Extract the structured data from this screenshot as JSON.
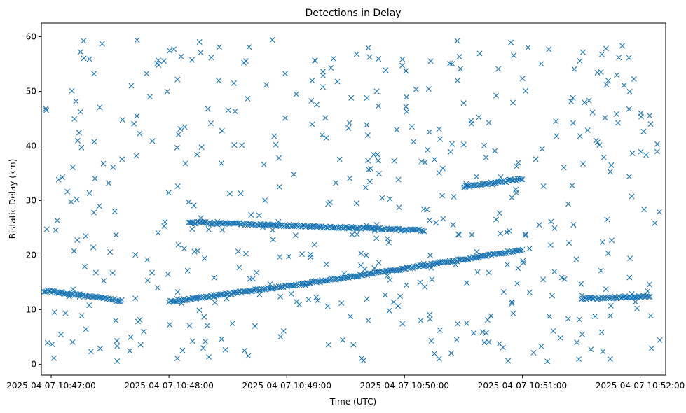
{
  "chart_data": {
    "type": "scatter",
    "title": "Detections in Delay",
    "xlabel": "Time (UTC)",
    "ylabel": "Bistatic Delay (km)",
    "marker": "x",
    "marker_color": "#1f77b4",
    "grid": false,
    "legend": "none",
    "x_unit": "time",
    "xlim": [
      "2025-04-07 10:46:55",
      "2025-04-07 10:52:13"
    ],
    "ylim": [
      -2,
      62.5
    ],
    "x_ticks": [
      {
        "label": "2025-04-07 10:47:00",
        "value": "2025-04-07 10:47:00"
      },
      {
        "label": "2025-04-07 10:48:00",
        "value": "2025-04-07 10:48:00"
      },
      {
        "label": "2025-04-07 10:49:00",
        "value": "2025-04-07 10:49:00"
      },
      {
        "label": "2025-04-07 10:50:00",
        "value": "2025-04-07 10:50:00"
      },
      {
        "label": "2025-04-07 10:51:00",
        "value": "2025-04-07 10:51:00"
      },
      {
        "label": "2025-04-07 10:52:00",
        "value": "2025-04-07 10:52:00"
      }
    ],
    "y_ticks": [
      0,
      10,
      20,
      30,
      40,
      50,
      60
    ],
    "tracks": [
      {
        "start": "2025-04-07 10:46:55",
        "end": "2025-04-07 10:47:36",
        "delay_start": 13.5,
        "delay_end": 11.6
      },
      {
        "start": "2025-04-07 10:48:00",
        "end": "2025-04-07 10:51:00",
        "delay_start": 11.5,
        "delay_end": 21.0
      },
      {
        "start": "2025-04-07 10:48:10",
        "end": "2025-04-07 10:50:10",
        "delay_start": 26.0,
        "delay_end": 24.5
      },
      {
        "start": "2025-04-07 10:50:30",
        "end": "2025-04-07 10:51:00",
        "delay_start": 32.5,
        "delay_end": 34.0
      },
      {
        "start": "2025-04-07 10:51:30",
        "end": "2025-04-07 10:52:05",
        "delay_start": 12.0,
        "delay_end": 12.5
      }
    ],
    "clutter_points": 520
  }
}
